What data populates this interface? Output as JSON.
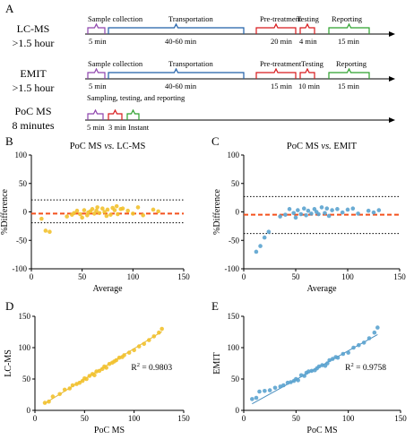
{
  "colors": {
    "bracket_purple": "#8e44ad",
    "bracket_blue": "#1f5fa8",
    "bracket_red": "#d7191c",
    "bracket_green": "#2ca02c",
    "gold": "#f2c12e",
    "blue_dot": "#5ba3cf",
    "bias_line": "#f4511e",
    "fit_gold": "#e0b83a",
    "fit_blue": "#4a8fbf"
  },
  "panel_a": {
    "letter": "A",
    "rows": [
      {
        "name": "LC-MS",
        "time": ">1.5 hour",
        "steps": [
          {
            "label": "Sample collection",
            "duration": "5 min",
            "color": "#8e44ad"
          },
          {
            "label": "Transportation",
            "duration": "40-60 min",
            "color": "#1f5fa8"
          },
          {
            "label": "Pre-treatment",
            "duration": "20 min",
            "color": "#d7191c"
          },
          {
            "label": "Testing",
            "duration": "4 min",
            "color": "#d7191c"
          },
          {
            "label": "Reporting",
            "duration": "15 min",
            "color": "#2ca02c"
          }
        ]
      },
      {
        "name": "EMIT",
        "time": ">1.5 hour",
        "steps": [
          {
            "label": "Sample collection",
            "duration": "5 min",
            "color": "#8e44ad"
          },
          {
            "label": "Transportation",
            "duration": "40-60 min",
            "color": "#1f5fa8"
          },
          {
            "label": "Pre-treatment",
            "duration": "15 min",
            "color": "#d7191c"
          },
          {
            "label": "Testing",
            "duration": "10 min",
            "color": "#d7191c"
          },
          {
            "label": "Reporting",
            "duration": "15 min",
            "color": "#2ca02c"
          }
        ]
      },
      {
        "name": "PoC MS",
        "time": "8 minutes",
        "caption": "Sampling, testing, and reporting",
        "steps": [
          {
            "label": "",
            "duration": "5 min",
            "color": "#8e44ad"
          },
          {
            "label": "",
            "duration": "3 min",
            "color": "#d7191c"
          },
          {
            "label": "",
            "duration": "Instant",
            "color": "#2ca02c"
          }
        ]
      }
    ]
  },
  "chart_data": [
    {
      "panel": "B",
      "type": "scatter",
      "title": "PoC MS vs. LC-MS",
      "title_parts": [
        "PoC MS ",
        "vs.",
        " LC-MS"
      ],
      "xlabel": "Average",
      "ylabel": "%Difference",
      "xlim": [
        0,
        150
      ],
      "ylim": [
        -100,
        100
      ],
      "xticks": [
        0,
        50,
        100,
        150
      ],
      "yticks": [
        -100,
        -50,
        0,
        50,
        100
      ],
      "bias": -3,
      "loa": [
        21,
        -19
      ],
      "color": "#f2c12e",
      "x": [
        10,
        14,
        18,
        35,
        40,
        45,
        48,
        50,
        52,
        55,
        58,
        60,
        62,
        65,
        67,
        70,
        72,
        75,
        78,
        80,
        82,
        85,
        88,
        90,
        95,
        100,
        105,
        110,
        120,
        125,
        42,
        56,
        64,
        74,
        84
      ],
      "y": [
        -12,
        -33,
        -35,
        -8,
        -5,
        2,
        -4,
        -10,
        3,
        -6,
        1,
        5,
        -3,
        8,
        -2,
        6,
        0,
        4,
        -5,
        7,
        3,
        -4,
        5,
        6,
        2,
        -3,
        8,
        -6,
        4,
        1,
        -2,
        -1,
        2,
        -7,
        10
      ]
    },
    {
      "panel": "C",
      "type": "scatter",
      "title": "PoC MS vs. EMIT",
      "title_parts": [
        "PoC MS ",
        "vs.",
        " EMIT"
      ],
      "xlabel": "Average",
      "ylabel": "%Difference",
      "xlim": [
        0,
        150
      ],
      "ylim": [
        -100,
        100
      ],
      "xticks": [
        0,
        50,
        100,
        150
      ],
      "yticks": [
        -100,
        -50,
        0,
        50,
        100
      ],
      "bias": -5,
      "loa": [
        27,
        -38
      ],
      "color": "#5ba3cf",
      "x": [
        12,
        16,
        20,
        24,
        35,
        40,
        44,
        48,
        50,
        52,
        55,
        58,
        60,
        62,
        65,
        68,
        70,
        72,
        75,
        78,
        80,
        82,
        85,
        90,
        95,
        100,
        105,
        110,
        120,
        125,
        130
      ],
      "y": [
        -70,
        -60,
        -45,
        -35,
        -8,
        -5,
        5,
        -2,
        -10,
        3,
        -4,
        6,
        -6,
        2,
        -3,
        5,
        0,
        -4,
        8,
        -2,
        6,
        -7,
        3,
        5,
        -1,
        4,
        6,
        -3,
        2,
        -1,
        3
      ]
    },
    {
      "panel": "D",
      "type": "scatter",
      "title": "",
      "xlabel": "PoC MS",
      "ylabel": "LC-MS",
      "xlim": [
        0,
        150
      ],
      "ylim": [
        0,
        150
      ],
      "xticks": [
        0,
        50,
        100,
        150
      ],
      "yticks": [
        0,
        50,
        100,
        150
      ],
      "annotation_prefix": "R",
      "annotation_value": " = 0.9803",
      "color": "#f2c12e",
      "fit_color": "#e0b83a",
      "fit": [
        0.97,
        1.5
      ],
      "x": [
        10,
        14,
        18,
        25,
        30,
        35,
        38,
        42,
        45,
        48,
        50,
        52,
        55,
        58,
        60,
        62,
        65,
        68,
        70,
        72,
        75,
        78,
        80,
        82,
        85,
        88,
        90,
        95,
        100,
        105,
        110,
        115,
        120,
        125,
        128
      ],
      "y": [
        12,
        14,
        22,
        26,
        33,
        35,
        40,
        42,
        44,
        47,
        51,
        50,
        55,
        58,
        56,
        62,
        63,
        66,
        70,
        68,
        74,
        76,
        78,
        80,
        84,
        85,
        88,
        92,
        96,
        102,
        106,
        112,
        118,
        124,
        130
      ]
    },
    {
      "panel": "E",
      "type": "scatter",
      "title": "",
      "xlabel": "PoC MS",
      "ylabel": "EMIT",
      "xlim": [
        0,
        150
      ],
      "ylim": [
        0,
        150
      ],
      "xticks": [
        0,
        50,
        100,
        150
      ],
      "yticks": [
        0,
        50,
        100,
        150
      ],
      "annotation_prefix": "R",
      "annotation_value": " = 0.9758",
      "color": "#5ba3cf",
      "fit_color": "#4a8fbf",
      "fit": [
        0.92,
        3
      ],
      "x": [
        8,
        12,
        15,
        20,
        25,
        30,
        35,
        38,
        42,
        45,
        48,
        50,
        52,
        55,
        58,
        60,
        62,
        65,
        68,
        70,
        72,
        75,
        78,
        80,
        82,
        85,
        88,
        90,
        95,
        100,
        105,
        110,
        115,
        120,
        125,
        128
      ],
      "y": [
        18,
        20,
        30,
        31,
        32,
        36,
        38,
        40,
        44,
        45,
        47,
        50,
        48,
        56,
        55,
        60,
        62,
        63,
        64,
        67,
        70,
        72,
        71,
        75,
        80,
        82,
        85,
        84,
        90,
        92,
        100,
        104,
        108,
        115,
        124,
        132
      ]
    }
  ]
}
